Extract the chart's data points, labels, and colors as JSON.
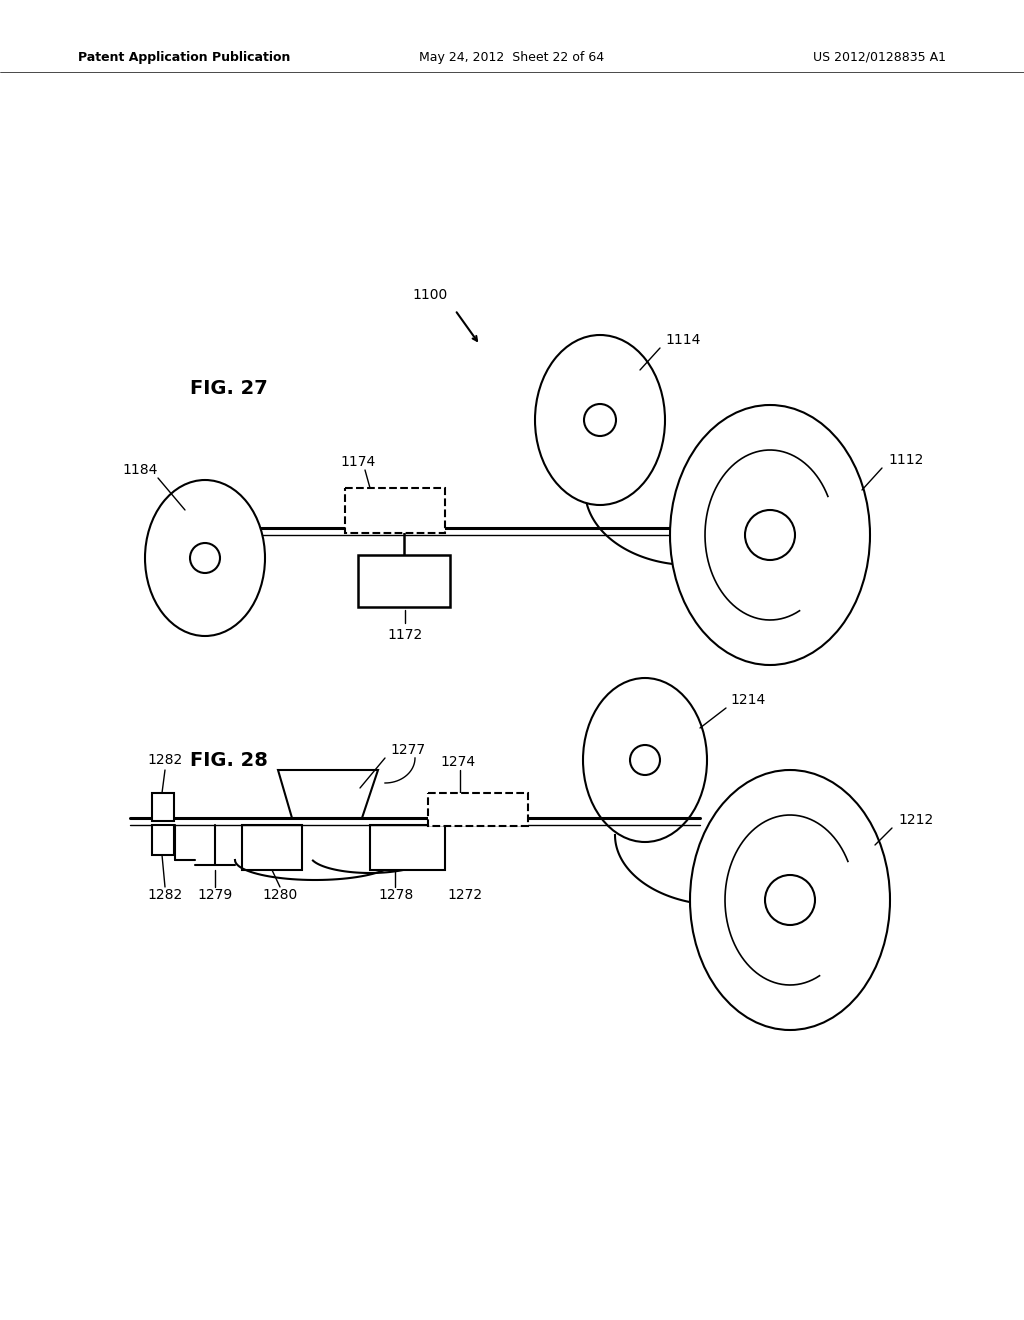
{
  "bg_color": "#ffffff",
  "header_left": "Patent Application Publication",
  "header_center": "May 24, 2012  Sheet 22 of 64",
  "header_right": "US 2012/0128835 A1"
}
